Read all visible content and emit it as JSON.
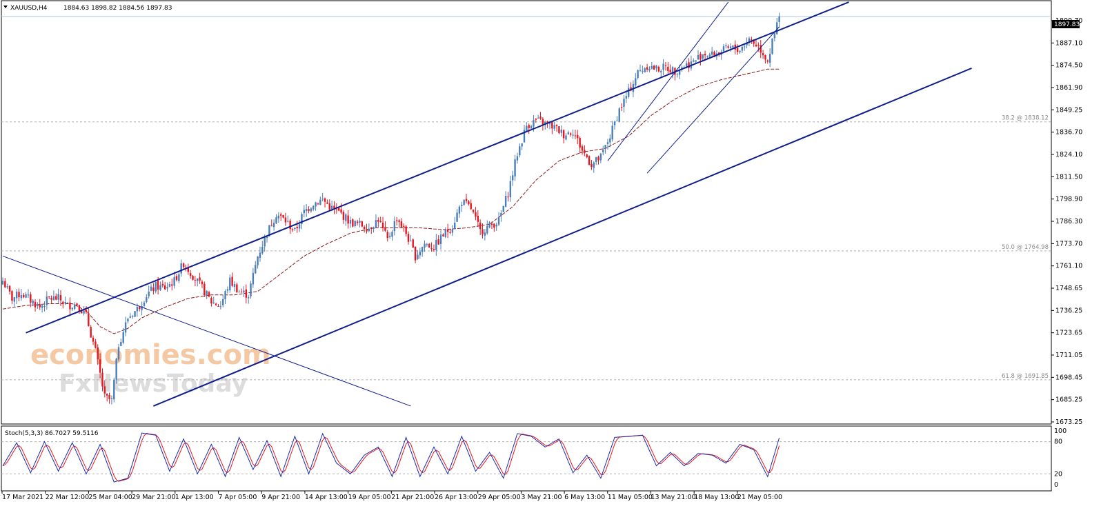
{
  "header": {
    "symbol_label": "XAUUSD,H4",
    "ohlc": "1884.63 1898.82 1884.56 1897.83",
    "menu_icon": "triangle-down-icon"
  },
  "watermark": {
    "line1": "economies.com",
    "line2": "FxNewsToday"
  },
  "indicator": {
    "label": "Stoch(5,3,3) 86.7027 59.5116",
    "levels": [
      "100",
      "80",
      "20",
      "0"
    ]
  },
  "colors": {
    "bull": "#4a7ebb",
    "bear": "#e8141e",
    "trend": "#0f1e8c",
    "ma": "#8b1a1a",
    "stoch_main": "#1a2aa8",
    "stoch_signal": "#e8141e",
    "grid": "#b0b0b0",
    "price_line": "#a8cbe8"
  },
  "chart_data": {
    "type": "candlestick",
    "price_axis": {
      "range": [
        1667.2,
        1906.4
      ],
      "ticks": [
        "1899.70",
        "1887.10",
        "1874.50",
        "1861.90",
        "1849.25",
        "1836.70",
        "1824.10",
        "1811.50",
        "1798.90",
        "1786.30",
        "1773.70",
        "1761.10",
        "1748.65",
        "1736.25",
        "1723.65",
        "1711.05",
        "1698.45",
        "1685.25",
        "1673.25"
      ]
    },
    "current_price": "1897.83",
    "time_labels": [
      "17 Mar 2021",
      "22 Mar 12:00",
      "25 Mar 04:00",
      "29 Mar 21:00",
      "1 Apr 13:00",
      "7 Apr 05:00",
      "9 Apr 21:00",
      "14 Apr 13:00",
      "19 Apr 05:00",
      "21 Apr 21:00",
      "26 Apr 13:00",
      "29 Apr 05:00",
      "3 May 21:00",
      "6 May 13:00",
      "11 May 05:00",
      "13 May 21:00",
      "18 May 13:00",
      "21 May 05:00"
    ],
    "fib_levels": [
      {
        "label": "38.2 @ 1838.12",
        "price": 1838.12
      },
      {
        "label": "50.0 @ 1764.98",
        "price": 1764.98
      },
      {
        "label": "61.8 @ 1691.85",
        "price": 1691.85
      }
    ],
    "anchors": [
      [
        0,
        1748
      ],
      [
        4,
        1738
      ],
      [
        8,
        1741
      ],
      [
        12,
        1737
      ],
      [
        16,
        1733
      ],
      [
        20,
        1738
      ],
      [
        24,
        1738
      ],
      [
        28,
        1734
      ],
      [
        32,
        1735
      ],
      [
        36,
        1728
      ],
      [
        40,
        1708
      ],
      [
        44,
        1682
      ],
      [
        47,
        1680
      ],
      [
        50,
        1712
      ],
      [
        54,
        1727
      ],
      [
        58,
        1732
      ],
      [
        62,
        1740
      ],
      [
        66,
        1745
      ],
      [
        70,
        1744
      ],
      [
        74,
        1748
      ],
      [
        78,
        1758
      ],
      [
        82,
        1751
      ],
      [
        86,
        1744
      ],
      [
        90,
        1736
      ],
      [
        94,
        1734
      ],
      [
        98,
        1748
      ],
      [
        102,
        1742
      ],
      [
        106,
        1740
      ],
      [
        110,
        1762
      ],
      [
        114,
        1775
      ],
      [
        118,
        1786
      ],
      [
        122,
        1782
      ],
      [
        126,
        1776
      ],
      [
        130,
        1787
      ],
      [
        134,
        1792
      ],
      [
        138,
        1794
      ],
      [
        142,
        1789
      ],
      [
        146,
        1786
      ],
      [
        150,
        1781
      ],
      [
        154,
        1780
      ],
      [
        158,
        1778
      ],
      [
        162,
        1783
      ],
      [
        166,
        1771
      ],
      [
        170,
        1784
      ],
      [
        174,
        1775
      ],
      [
        178,
        1762
      ],
      [
        182,
        1769
      ],
      [
        186,
        1767
      ],
      [
        190,
        1774
      ],
      [
        194,
        1779
      ],
      [
        198,
        1793
      ],
      [
        202,
        1789
      ],
      [
        206,
        1776
      ],
      [
        210,
        1779
      ],
      [
        214,
        1782
      ],
      [
        218,
        1798
      ],
      [
        222,
        1820
      ],
      [
        226,
        1836
      ],
      [
        230,
        1839
      ],
      [
        234,
        1837
      ],
      [
        238,
        1835
      ],
      [
        242,
        1831
      ],
      [
        246,
        1833
      ],
      [
        250,
        1822
      ],
      [
        254,
        1814
      ],
      [
        258,
        1818
      ],
      [
        262,
        1830
      ],
      [
        266,
        1845
      ],
      [
        270,
        1855
      ],
      [
        274,
        1866
      ],
      [
        278,
        1870
      ],
      [
        282,
        1868
      ],
      [
        286,
        1869
      ],
      [
        290,
        1867
      ],
      [
        294,
        1870
      ],
      [
        298,
        1872
      ],
      [
        302,
        1877
      ],
      [
        306,
        1876
      ],
      [
        310,
        1878
      ],
      [
        314,
        1880
      ],
      [
        318,
        1879
      ],
      [
        322,
        1885
      ],
      [
        326,
        1881
      ],
      [
        330,
        1873
      ],
      [
        333,
        1888
      ],
      [
        335,
        1897.83
      ]
    ],
    "candle_count": 336,
    "ma_anchors": [
      [
        0,
        1732
      ],
      [
        10,
        1734
      ],
      [
        20,
        1735
      ],
      [
        30,
        1735
      ],
      [
        36,
        1731
      ],
      [
        42,
        1722
      ],
      [
        48,
        1718
      ],
      [
        54,
        1721
      ],
      [
        60,
        1727
      ],
      [
        70,
        1733
      ],
      [
        80,
        1738
      ],
      [
        90,
        1740
      ],
      [
        100,
        1740
      ],
      [
        110,
        1742
      ],
      [
        120,
        1752
      ],
      [
        130,
        1762
      ],
      [
        140,
        1769
      ],
      [
        150,
        1775
      ],
      [
        160,
        1778
      ],
      [
        170,
        1778
      ],
      [
        180,
        1778
      ],
      [
        190,
        1777
      ],
      [
        200,
        1778
      ],
      [
        210,
        1780
      ],
      [
        220,
        1790
      ],
      [
        230,
        1805
      ],
      [
        240,
        1816
      ],
      [
        250,
        1821
      ],
      [
        260,
        1823
      ],
      [
        270,
        1830
      ],
      [
        280,
        1842
      ],
      [
        290,
        1851
      ],
      [
        300,
        1858
      ],
      [
        310,
        1862
      ],
      [
        320,
        1865
      ],
      [
        330,
        1868
      ],
      [
        335,
        1868
      ]
    ],
    "trend_lines": [
      {
        "name": "channel-upper",
        "from": [
          0.3,
          1720
        ],
        "to": [
          14,
          1906
        ],
        "unit": "x-as-index"
      },
      {
        "name": "channel-lower",
        "from": [
          0,
          1677
        ],
        "to": [
          14,
          1869
        ]
      }
    ],
    "stochastic": {
      "params": "5,3,3",
      "main": 86.7027,
      "signal": 59.5116,
      "range": [
        0,
        100
      ],
      "levels": [
        80,
        20
      ],
      "main_anchors": [
        [
          0,
          35
        ],
        [
          6,
          78
        ],
        [
          12,
          22
        ],
        [
          18,
          80
        ],
        [
          24,
          25
        ],
        [
          30,
          78
        ],
        [
          36,
          20
        ],
        [
          42,
          75
        ],
        [
          48,
          5
        ],
        [
          54,
          12
        ],
        [
          60,
          96
        ],
        [
          66,
          92
        ],
        [
          72,
          25
        ],
        [
          78,
          85
        ],
        [
          84,
          20
        ],
        [
          90,
          75
        ],
        [
          96,
          15
        ],
        [
          102,
          88
        ],
        [
          108,
          28
        ],
        [
          114,
          82
        ],
        [
          120,
          15
        ],
        [
          126,
          90
        ],
        [
          132,
          20
        ],
        [
          138,
          95
        ],
        [
          144,
          40
        ],
        [
          150,
          20
        ],
        [
          156,
          55
        ],
        [
          162,
          70
        ],
        [
          168,
          15
        ],
        [
          174,
          88
        ],
        [
          180,
          15
        ],
        [
          186,
          70
        ],
        [
          192,
          20
        ],
        [
          198,
          90
        ],
        [
          204,
          25
        ],
        [
          210,
          60
        ],
        [
          216,
          12
        ],
        [
          222,
          95
        ],
        [
          228,
          90
        ],
        [
          234,
          70
        ],
        [
          240,
          85
        ],
        [
          246,
          22
        ],
        [
          252,
          55
        ],
        [
          258,
          12
        ],
        [
          264,
          88
        ],
        [
          270,
          90
        ],
        [
          276,
          92
        ],
        [
          282,
          35
        ],
        [
          288,
          60
        ],
        [
          294,
          35
        ],
        [
          300,
          58
        ],
        [
          306,
          55
        ],
        [
          312,
          40
        ],
        [
          318,
          75
        ],
        [
          324,
          65
        ],
        [
          330,
          15
        ],
        [
          335,
          87
        ]
      ]
    }
  }
}
